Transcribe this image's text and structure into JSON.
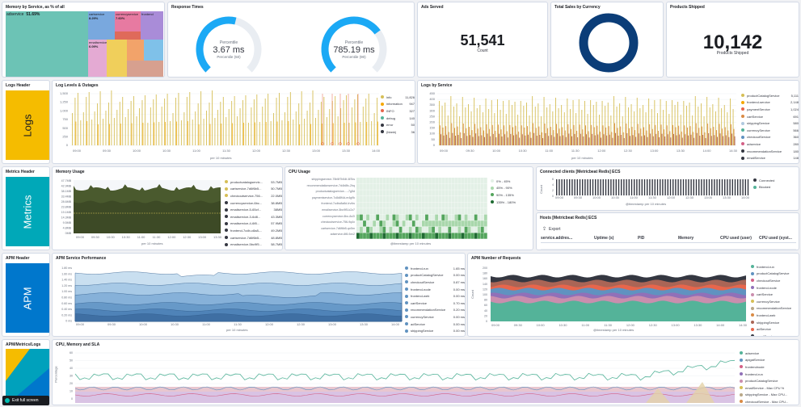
{
  "panels": {
    "memory_service": "Memory by Service, as % of all",
    "response_times": "Response Times",
    "ads_served": "Ads Served",
    "total_sales": "Total Sales by Currency",
    "products_shipped": "Products Shipped",
    "logs_header": "Logs Header",
    "log_levels": "Log Levels & Outages",
    "logs_by_service": "Logs by Service",
    "metrics_header": "Metrics Header",
    "memory_usage": "Memory Usage",
    "cpu_usage": "CPU Usage",
    "connected_clients": "Connected clients [Metricbeat Redis] ECS",
    "hosts": "Hosts [Metricbeat Redis] ECS",
    "apm_header": "APM Header",
    "apm_perf": "APM Service Performance",
    "apm_requests": "APM Number of Requests",
    "apm_metrics_logs": "APM/Metrics/Logs",
    "cpu_mem_sla": "CPU, Memory and SLA"
  },
  "treemap": {
    "tiles": [
      {
        "label": "adservice",
        "pct": "51.69%",
        "color": "#6cc3b5"
      },
      {
        "label": "cartservice",
        "pct": "8.29%",
        "color": "#79a8de"
      },
      {
        "label": "currencyservice",
        "pct": "7.60%",
        "color": "#e77aa1"
      },
      {
        "label": "frontend",
        "pct": "",
        "color": "#a98cd8"
      },
      {
        "label": "emailservice",
        "pct": "6.09%",
        "color": "#e4aad3"
      },
      {
        "label": "",
        "pct": "",
        "color": "#f0cf5b"
      },
      {
        "label": "",
        "pct": "",
        "color": "#f2a36a"
      },
      {
        "label": "",
        "pct": "",
        "color": "#7fc1e9"
      },
      {
        "label": "",
        "pct": "",
        "color": "#d7a08f"
      },
      {
        "label": "",
        "pct": "",
        "color": "#df6a5a"
      }
    ]
  },
  "gauges": [
    {
      "title": "Percentile",
      "value": "3.67 ms",
      "sub": "Percentile (50)",
      "fill": 0.55
    },
    {
      "title": "Percentile",
      "value": "785.19 ms",
      "sub": "Percentile (90)",
      "fill": 0.7
    }
  ],
  "ads": {
    "value": "51,541",
    "label": "Count"
  },
  "shipped": {
    "value": "10,142",
    "label": "Products Shipped"
  },
  "headers": {
    "logs": "Logs",
    "metrics": "Metrics",
    "apm": "APM"
  },
  "log_levels_legend": [
    {
      "name": "info",
      "value": "11,826",
      "color": "#d6bf57"
    },
    {
      "name": "information",
      "value": "947",
      "color": "#f5a700"
    },
    {
      "name": "INFO",
      "value": "327",
      "color": "#e7664c"
    },
    {
      "name": "debug",
      "value": "140",
      "color": "#54b399"
    },
    {
      "name": "error",
      "value": "50",
      "color": "#343741"
    },
    {
      "name": "(blank)",
      "value": "36",
      "color": "#343741"
    }
  ],
  "logs_service_legend": [
    {
      "name": "productCatalogService",
      "value": "5,111",
      "color": "#d6bf57"
    },
    {
      "name": "frontend-service",
      "value": "2,148",
      "color": "#f5a700"
    },
    {
      "name": "paymentService",
      "value": "1,024",
      "color": "#e7664c"
    },
    {
      "name": "cartService",
      "value": "691",
      "color": "#da8b45"
    },
    {
      "name": "shippingService",
      "value": "580",
      "color": "#b0c9e0"
    },
    {
      "name": "currencyService",
      "value": "566",
      "color": "#54b399"
    },
    {
      "name": "checkoutService",
      "value": "360",
      "color": "#6092c0"
    },
    {
      "name": "adservice",
      "value": "280",
      "color": "#d36086"
    },
    {
      "name": "recommendationService",
      "value": "180",
      "color": "#343741"
    },
    {
      "name": "emailService",
      "value": "148",
      "color": "#343741"
    }
  ],
  "memory_legend": [
    {
      "name": "productcatalogservic...",
      "value": "53.7MB",
      "color": "#d6bf57"
    },
    {
      "name": "cartservice-7d6f6b5...",
      "value": "50.7MB",
      "color": "#d6bf57"
    },
    {
      "name": "checkoutservice-756...",
      "value": "22.0MB",
      "color": "#d6bf57"
    },
    {
      "name": "currencyservice-6bc...",
      "value": "38.8MB",
      "color": "#343741"
    },
    {
      "name": "emailservice-5-65cf...",
      "value": "38MB",
      "color": "#343741"
    },
    {
      "name": "emailservice-3-6d8...",
      "value": "43.3MB",
      "color": "#343741"
    },
    {
      "name": "emailservice-4-6f8...",
      "value": "57.9MB",
      "color": "#343741"
    },
    {
      "name": "frontend-7cdb-c8a8-...",
      "value": "49.2MB",
      "color": "#343741"
    },
    {
      "name": "cartservice-7d6f6b5...",
      "value": "48.8MB",
      "color": "#343741"
    },
    {
      "name": "emailservice-5bc9f5...",
      "value": "58.7MB",
      "color": "#343741"
    }
  ],
  "cpu_legend": [
    {
      "name": "0% - 45%",
      "color": "#e3f0e6"
    },
    {
      "name": "45% - 90%",
      "color": "#a9d7ac"
    },
    {
      "name": "90% - 135%",
      "color": "#54a55d"
    },
    {
      "name": "135% - 180%",
      "color": "#1f6b32"
    }
  ],
  "cpu_rows": [
    "shippingservice-75b5f7b54f-8l7ks",
    "recommendationservice-7d4b8fc-2hq",
    "productcatalogservice-...-7g5d",
    "paymentservice-7c8d8f4d-m4g9k",
    "frontend-7cdbc8a8d-lrv4w",
    "emailservice-5bc9f5-k2z7",
    "currencyservice-6bc-8z2l",
    "checkoutservice-756-9q4x",
    "cartservice-7d6f6b5-qn5m",
    "adservice-6f8-9zx2"
  ],
  "connected_legend": [
    {
      "name": "Connected",
      "color": "#343741"
    },
    {
      "name": "Blocked",
      "color": "#54b399"
    }
  ],
  "hosts_table": {
    "export": "Export",
    "columns": [
      "service.addres...",
      "Uptime (s)",
      "PID",
      "Memory",
      "CPU used (user)",
      "CPU used (syst..."
    ]
  },
  "apm_perf_legend": [
    {
      "name": "frontend-run",
      "value": "1.65 ms",
      "color": "#6092c0"
    },
    {
      "name": "productCatalogService",
      "value": "0.00 ms",
      "color": "#6092c0"
    },
    {
      "name": "checkoutService",
      "value": "0.87 ms",
      "color": "#6092c0"
    },
    {
      "name": "frontend-node",
      "value": "0.00 ms",
      "color": "#6092c0"
    },
    {
      "name": "frontend-web",
      "value": "0.00 ms",
      "color": "#6092c0"
    },
    {
      "name": "cartService",
      "value": "0.70 ms",
      "color": "#6092c0"
    },
    {
      "name": "recommendationService",
      "value": "0.20 ms",
      "color": "#6092c0"
    },
    {
      "name": "currencyService",
      "value": "0.00 ms",
      "color": "#6092c0"
    },
    {
      "name": "adService",
      "value": "0.00 ms",
      "color": "#6092c0"
    },
    {
      "name": "shippingService",
      "value": "0.00 ms",
      "color": "#6092c0"
    }
  ],
  "apm_req_legend": [
    {
      "name": "frontend-run",
      "color": "#54b399"
    },
    {
      "name": "productCatalogService",
      "color": "#6092c0"
    },
    {
      "name": "checkoutService",
      "color": "#d36086"
    },
    {
      "name": "frontend-node",
      "color": "#9170b8"
    },
    {
      "name": "cartService",
      "color": "#ca8eae"
    },
    {
      "name": "currencyService",
      "color": "#d6bf57"
    },
    {
      "name": "recommendationService",
      "color": "#b9a888"
    },
    {
      "name": "frontend-web",
      "color": "#da8b45"
    },
    {
      "name": "shippingService",
      "color": "#aa6556"
    },
    {
      "name": "adService",
      "color": "#e7664c"
    },
    {
      "name": "emailService",
      "color": "#343741"
    }
  ],
  "sla_legend": [
    {
      "name": "adservice",
      "color": "#54b399"
    },
    {
      "name": "apigatService",
      "color": "#6092c0"
    },
    {
      "name": "frontendnode",
      "color": "#d36086"
    },
    {
      "name": "frontend-run",
      "color": "#9170b8"
    },
    {
      "name": "productCatalogService",
      "color": "#ca8eae"
    },
    {
      "name": "emailService - Max CPU %",
      "color": "#d6bf57"
    },
    {
      "name": "shippingService - Max CPU...",
      "color": "#b9a888"
    },
    {
      "name": "checkoutService - Max CPU...",
      "color": "#da8b45"
    },
    {
      "name": "productCatalogService - M...",
      "color": "#aa6556"
    },
    {
      "name": "currencyService - Max CPU...",
      "color": "#e7664c"
    }
  ],
  "axis": {
    "per10": "per 10 minutes",
    "ts": "@timestamp per 10 minutes",
    "count": "Count",
    "percentage": "Percentage"
  },
  "times": [
    "09:00",
    "09:30",
    "10:00",
    "10:30",
    "11:00",
    "11:30",
    "12:00",
    "12:30",
    "13:00",
    "13:30",
    "14:00",
    "14:30"
  ],
  "fullscreen": {
    "label": "Exit full screen"
  }
}
